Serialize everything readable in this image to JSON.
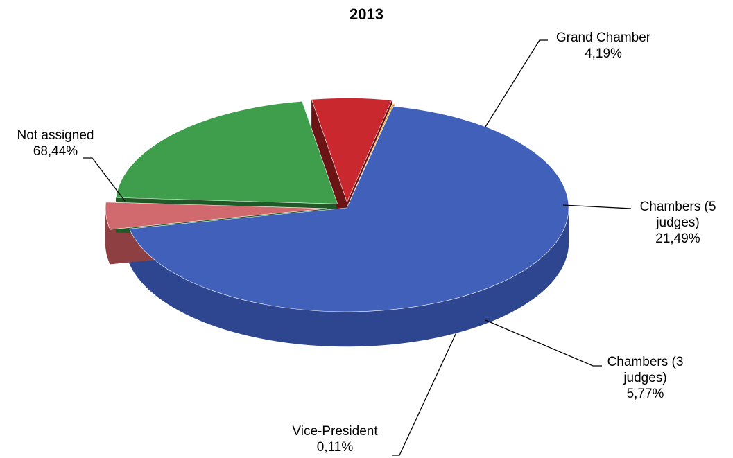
{
  "chart_data": {
    "type": "pie",
    "title": "2013",
    "slices": [
      {
        "label": "Not assigned",
        "value_text": "68,44%",
        "value": 68.44,
        "color": "#4160B9",
        "side": "#2E4690"
      },
      {
        "label": "Grand Chamber",
        "value_text": "4,19%",
        "value": 4.19,
        "color": "#D06A6E",
        "side": "#8E3F42"
      },
      {
        "label": "Chambers (5 judges)",
        "value_text": "21,49%",
        "value": 21.49,
        "color": "#3E9E4B",
        "side": "#1F5A26"
      },
      {
        "label": "Chambers (3 judges)",
        "value_text": "5,77%",
        "value": 5.77,
        "color": "#C9282F",
        "side": "#6B1416"
      },
      {
        "label": "Vice-President",
        "value_text": "0,11%",
        "value": 0.11,
        "color": "#E0A010",
        "side": "#8A5C00"
      }
    ]
  }
}
